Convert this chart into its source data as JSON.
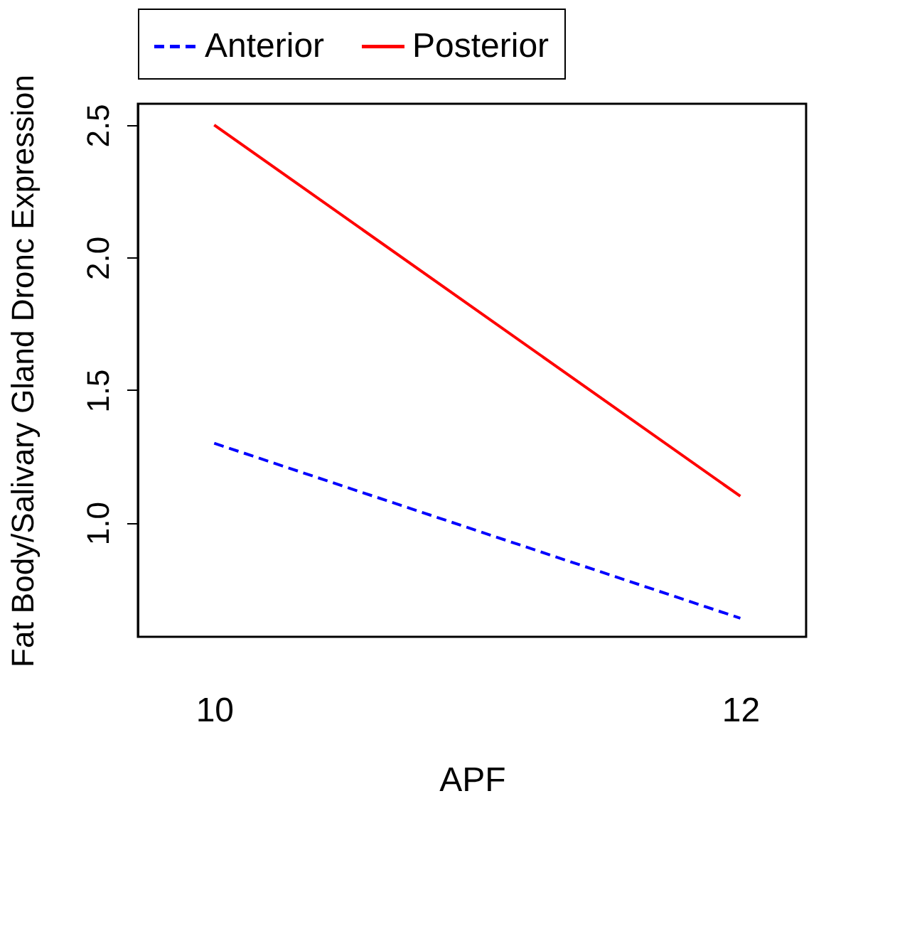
{
  "chart_data": {
    "type": "line",
    "xlabel": "APF",
    "ylabel": "Fat Body/Salivary Gland Dronc Expression",
    "x": [
      10,
      12
    ],
    "series": [
      {
        "name": "Anterior",
        "color": "#0000ff",
        "values": [
          1.3,
          0.64
        ],
        "line_style": "dashed"
      },
      {
        "name": "Posterior",
        "color": "#ff0000",
        "values": [
          2.5,
          1.1
        ],
        "line_style": "solid"
      }
    ],
    "xlim": [
      9.71,
      12.25
    ],
    "xticks": [
      10,
      12
    ],
    "ylim": [
      0.57,
      2.58
    ],
    "yticks": [
      {
        "value": 1,
        "label": "1.0"
      },
      1.5,
      {
        "value": 2,
        "label": "2.0"
      },
      2.5
    ],
    "grid": false,
    "legend": "top",
    "marker": "none"
  }
}
